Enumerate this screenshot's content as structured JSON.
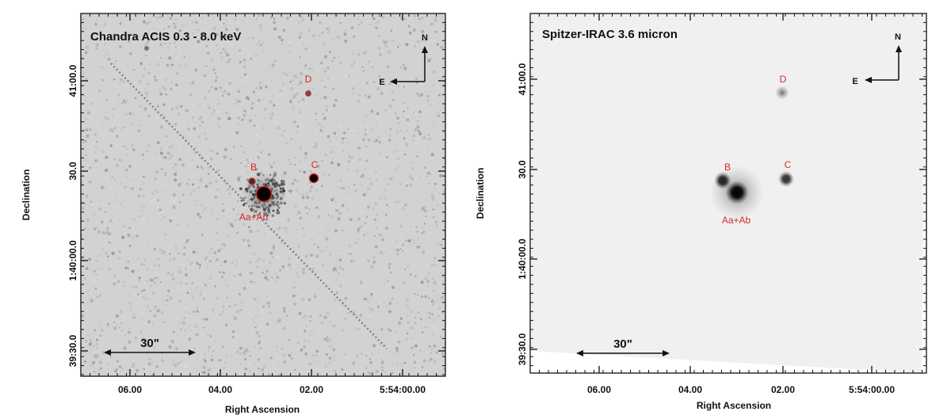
{
  "colors": {
    "accent": "#d42a2a",
    "frame": "#111111",
    "chandra_bg": "#d2d2d2",
    "spitzer_bg": "#f0f0f0"
  },
  "panels": [
    {
      "title": "Chandra ACIS 0.3 - 8.0 keV",
      "x_ticks": [
        "06.00",
        "04.00",
        "02.00",
        "5:54:00.00"
      ],
      "y_ticks": [
        "41:00.0",
        "30.0",
        "1:40:00.0",
        "39:30.0"
      ],
      "xlabel": "Right Ascension",
      "ylabel": "Declination",
      "compass": {
        "n": "N",
        "e": "E"
      },
      "scalebar": "30\"",
      "sources": [
        {
          "label": "Aa+Ab"
        },
        {
          "label": "B"
        },
        {
          "label": "C"
        },
        {
          "label": "D"
        }
      ]
    },
    {
      "title": "Spitzer-IRAC 3.6 micron",
      "x_ticks": [
        "06.00",
        "04.00",
        "02.00",
        "5:54:00.00"
      ],
      "y_ticks": [
        "41:00.0",
        "30.0",
        "1:40:00.0",
        "39:30.0"
      ],
      "xlabel": "Right Ascension",
      "ylabel": "Declination",
      "compass": {
        "n": "N",
        "e": "E"
      },
      "scalebar": "30\"",
      "sources": [
        {
          "label": "Aa+Ab"
        },
        {
          "label": "B"
        },
        {
          "label": "C"
        },
        {
          "label": "D"
        }
      ]
    }
  ]
}
